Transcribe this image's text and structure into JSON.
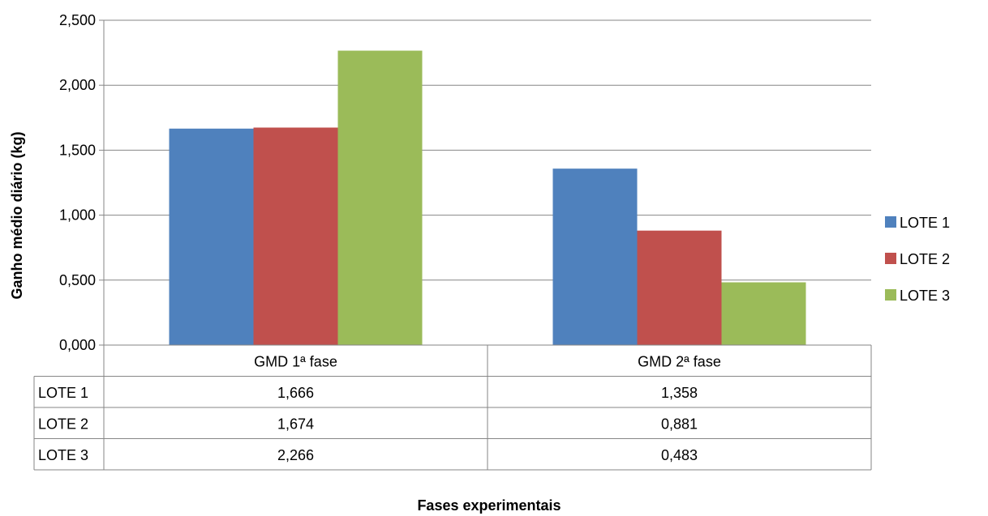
{
  "chart_data": {
    "type": "bar",
    "title": "",
    "xlabel": "Fases experimentais",
    "ylabel": "Ganho médio diário (kg)",
    "categories": [
      "GMD 1ª fase",
      "GMD 2ª fase"
    ],
    "series": [
      {
        "name": "LOTE 1",
        "values": [
          1.666,
          1.358
        ],
        "labels": [
          "1,666",
          "1,358"
        ],
        "color": "#4F81BD"
      },
      {
        "name": "LOTE 2",
        "values": [
          1.674,
          0.881
        ],
        "labels": [
          "1,674",
          "0,881"
        ],
        "color": "#C0504D"
      },
      {
        "name": "LOTE 3",
        "values": [
          2.266,
          0.483
        ],
        "labels": [
          "2,266",
          "0,483"
        ],
        "color": "#9BBB59"
      }
    ],
    "ylim": [
      0,
      2.5
    ],
    "yticks": [
      0,
      0.5,
      1.0,
      1.5,
      2.0,
      2.5
    ],
    "ytick_labels": [
      "0,000",
      "0,500",
      "1,000",
      "1,500",
      "2,000",
      "2,500"
    ],
    "grid": true,
    "legend_position": "right",
    "data_table": true
  }
}
